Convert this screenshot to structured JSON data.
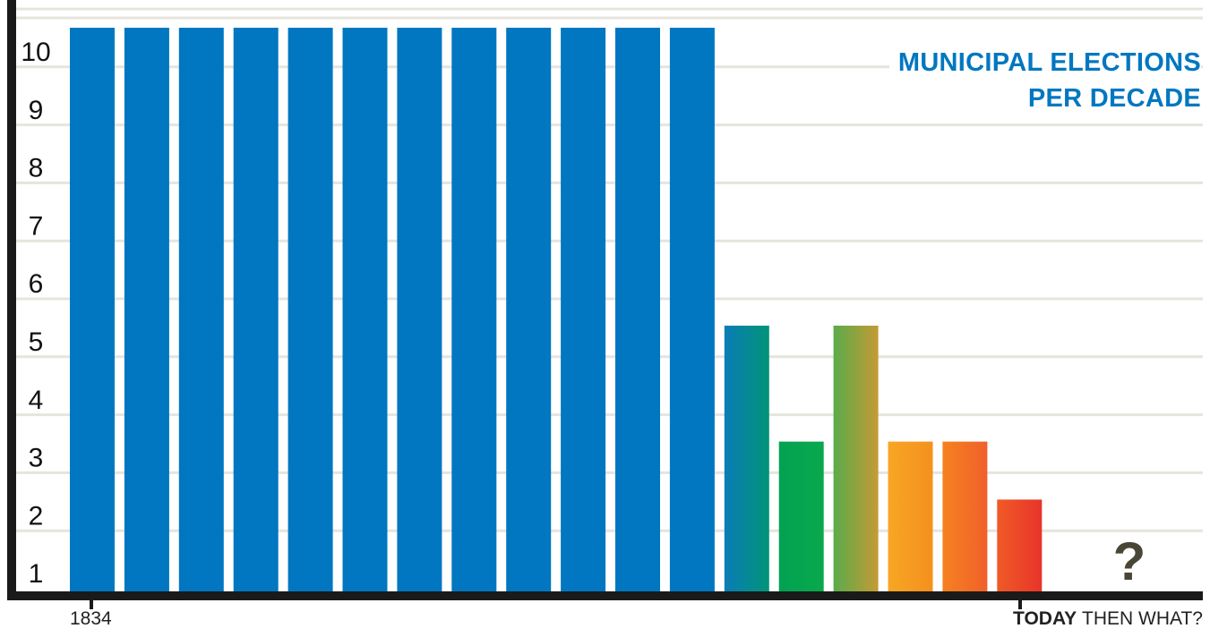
{
  "chart_data": {
    "type": "bar",
    "title_lines": [
      "MUNICIPAL ELECTIONS",
      "PER DECADE"
    ],
    "y_ticks": [
      "1",
      "2",
      "3",
      "4",
      "5",
      "6",
      "7",
      "8",
      "9",
      "10"
    ],
    "ylim": [
      0,
      10.4
    ],
    "grid": true,
    "x_start_label": "1834",
    "x_end_label_bold": "TODAY",
    "x_end_label_rest": "THEN WHAT?",
    "future_marker": "?",
    "values": [
      10,
      10,
      10,
      10,
      10,
      10,
      10,
      10,
      10,
      10,
      10,
      10,
      5,
      3,
      5,
      3,
      3,
      2
    ],
    "colors": {
      "primary": "#0077c0",
      "axis": "#1a1a1a",
      "grid": "#e6e4dc",
      "question_mark": "#4a4636",
      "gradient_bars": [
        [
          "#0a7db6",
          "#019478"
        ],
        [
          "#01a253",
          "#0aa84d"
        ],
        [
          "#5aab4a",
          "#c49b35"
        ],
        [
          "#f7a724",
          "#f5901e"
        ],
        [
          "#f58220",
          "#f0602a"
        ],
        [
          "#f05a27",
          "#e8342a"
        ]
      ]
    }
  }
}
